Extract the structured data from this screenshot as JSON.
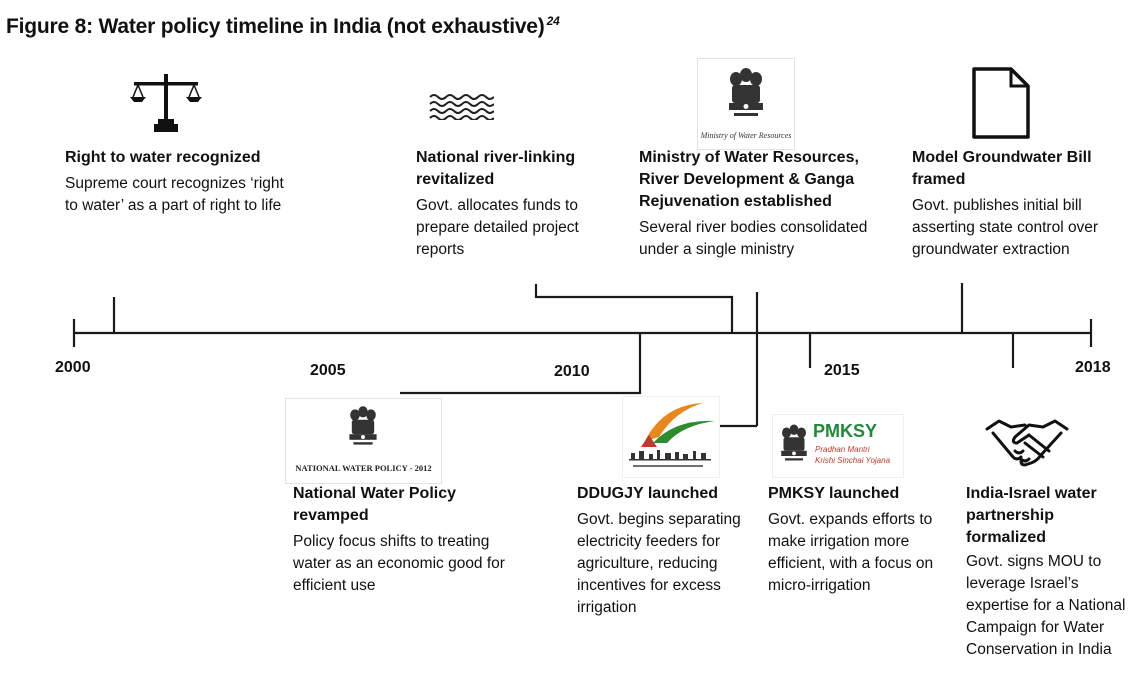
{
  "figure": {
    "title": "Figure 8: Water policy timeline in India (not exhaustive)",
    "footnote": "24"
  },
  "years": [
    "2000",
    "2005",
    "2010",
    "2015",
    "2018"
  ],
  "events_top": [
    {
      "icon": "scales-of-justice-icon",
      "title": "Right to water recognized",
      "desc": "Supreme court recognizes ‘right to water’ as a part of right to life"
    },
    {
      "icon": "water-waves-icon",
      "title": "National river-linking revitalized",
      "desc": "Govt. allocates funds to prepare detailed project reports"
    },
    {
      "icon": "ministry-emblem-logo",
      "logo_caption": "Ministry of Water Resources",
      "title": "Ministry of Water Resources, River Development & Ganga Rejuvenation established",
      "desc": "Several river bodies consolidated under a single ministry"
    },
    {
      "icon": "document-icon",
      "title": "Model Groundwater Bill framed",
      "desc": "Govt. publishes initial bill asserting state control over groundwater extraction"
    }
  ],
  "events_bottom": [
    {
      "icon": "national-water-policy-logo",
      "logo_caption": "NATIONAL WATER POLICY - 2012",
      "title": "National Water Policy revamped",
      "desc": "Policy focus shifts to treating water as an economic good for efficient use"
    },
    {
      "icon": "ddugjy-logo",
      "title": "DDUGJY launched",
      "desc": "Govt. begins separating electricity feeders for agriculture, reducing incentives for excess irrigation"
    },
    {
      "icon": "pmksy-logo",
      "logo_text": "PMKSY",
      "logo_sub1": "Pradhan Mantri",
      "logo_sub2": "Krishi Sinchai Yojana",
      "title": "PMKSY launched",
      "desc": "Govt. expands efforts to make irrigation more efficient, with a focus on micro-irrigation"
    },
    {
      "icon": "handshake-icon",
      "title": "India-Israel water partnership formalized",
      "desc": "Govt. signs MOU to leverage Israel’s expertise for a National Campaign for Water Conservation in India"
    }
  ],
  "colors": {
    "line": "#1a1a1a",
    "text": "#111111",
    "ddugjy_saffron": "#e8871e",
    "ddugjy_green": "#2e8b2e",
    "pmksy_green": "#1f8a3a",
    "pmksy_red": "#c0392b"
  }
}
